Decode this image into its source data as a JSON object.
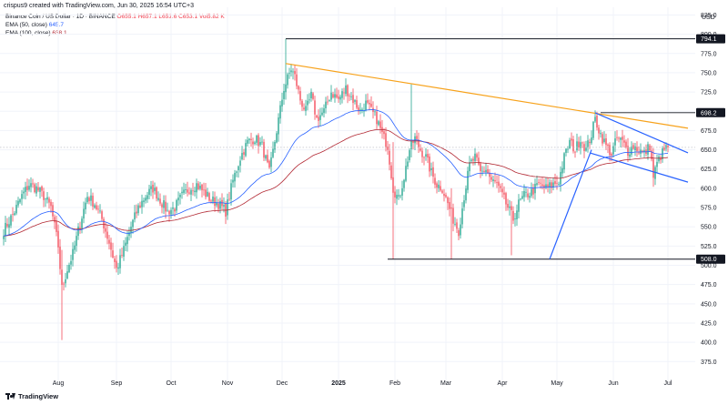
{
  "credit": "crispus9 created with TradingView.com, Jun 30, 2025 16:54 UTC+3",
  "legend": {
    "symbol": "Binance Coin / US Dollar · 1D · BINANCE",
    "ohlc": {
      "o": "O655.1",
      "h": "H657.1",
      "l": "L651.6",
      "c": "C653.1",
      "vol": "Vol5.82 K"
    },
    "ema50_label": "EMA (50, close)",
    "ema50_value": "645.7",
    "ema100_label": "EMA (100, close)",
    "ema100_value": "638.1"
  },
  "currency": "USD",
  "brand": "TradingView",
  "colors": {
    "up": "#089981",
    "down": "#f23645",
    "ema50": "#2962ff",
    "ema100": "#b22833",
    "trend_orange": "#f7a21b",
    "channel_blue": "#2962ff",
    "hline": "#131722",
    "grid": "#f0f3fa"
  },
  "chart_data": {
    "type": "candlestick",
    "title": "Binance Coin / US Dollar · 1D · BINANCE",
    "ylim": [
      360,
      835
    ],
    "yticks": [
      375,
      400,
      425,
      450,
      475,
      500,
      525,
      550,
      575,
      600,
      625,
      650,
      675,
      700,
      725,
      750,
      775,
      800,
      825
    ],
    "xticks": [
      {
        "label": "Aug",
        "day": 30,
        "bold": false
      },
      {
        "label": "Sep",
        "day": 62,
        "bold": false
      },
      {
        "label": "Oct",
        "day": 92,
        "bold": false
      },
      {
        "label": "Nov",
        "day": 123,
        "bold": false
      },
      {
        "label": "Dec",
        "day": 153,
        "bold": false
      },
      {
        "label": "2025",
        "day": 184,
        "bold": true
      },
      {
        "label": "Feb",
        "day": 215,
        "bold": false
      },
      {
        "label": "Mar",
        "day": 243,
        "bold": false
      },
      {
        "label": "Apr",
        "day": 274,
        "bold": false
      },
      {
        "label": "May",
        "day": 304,
        "bold": false
      },
      {
        "label": "Jun",
        "day": 335,
        "bold": false
      },
      {
        "label": "Jul",
        "day": 365,
        "bold": false
      }
    ],
    "price_anchors": [
      [
        0,
        545
      ],
      [
        6,
        570
      ],
      [
        10,
        590
      ],
      [
        14,
        605
      ],
      [
        18,
        600
      ],
      [
        22,
        590
      ],
      [
        26,
        575
      ],
      [
        30,
        525
      ],
      [
        32,
        470
      ],
      [
        35,
        495
      ],
      [
        38,
        515
      ],
      [
        42,
        555
      ],
      [
        46,
        590
      ],
      [
        50,
        580
      ],
      [
        54,
        560
      ],
      [
        58,
        530
      ],
      [
        62,
        495
      ],
      [
        66,
        520
      ],
      [
        70,
        550
      ],
      [
        74,
        575
      ],
      [
        78,
        590
      ],
      [
        82,
        600
      ],
      [
        86,
        585
      ],
      [
        90,
        570
      ],
      [
        94,
        575
      ],
      [
        98,
        590
      ],
      [
        102,
        600
      ],
      [
        106,
        605
      ],
      [
        110,
        595
      ],
      [
        114,
        585
      ],
      [
        118,
        580
      ],
      [
        122,
        570
      ],
      [
        126,
        610
      ],
      [
        130,
        640
      ],
      [
        134,
        660
      ],
      [
        138,
        665
      ],
      [
        142,
        655
      ],
      [
        146,
        620
      ],
      [
        150,
        675
      ],
      [
        154,
        730
      ],
      [
        158,
        755
      ],
      [
        160,
        745
      ],
      [
        163,
        715
      ],
      [
        166,
        700
      ],
      [
        169,
        720
      ],
      [
        172,
        690
      ],
      [
        176,
        700
      ],
      [
        180,
        725
      ],
      [
        184,
        715
      ],
      [
        188,
        730
      ],
      [
        192,
        715
      ],
      [
        196,
        700
      ],
      [
        199,
        710
      ],
      [
        202,
        700
      ],
      [
        205,
        690
      ],
      [
        208,
        670
      ],
      [
        211,
        655
      ],
      [
        214,
        600
      ],
      [
        217,
        585
      ],
      [
        220,
        615
      ],
      [
        223,
        650
      ],
      [
        226,
        665
      ],
      [
        229,
        650
      ],
      [
        232,
        640
      ],
      [
        235,
        620
      ],
      [
        238,
        605
      ],
      [
        241,
        600
      ],
      [
        244,
        580
      ],
      [
        247,
        560
      ],
      [
        250,
        545
      ],
      [
        253,
        590
      ],
      [
        256,
        630
      ],
      [
        259,
        640
      ],
      [
        262,
        620
      ],
      [
        265,
        625
      ],
      [
        268,
        610
      ],
      [
        271,
        605
      ],
      [
        274,
        590
      ],
      [
        277,
        575
      ],
      [
        280,
        560
      ],
      [
        283,
        580
      ],
      [
        286,
        590
      ],
      [
        290,
        595
      ],
      [
        294,
        605
      ],
      [
        298,
        600
      ],
      [
        302,
        605
      ],
      [
        305,
        610
      ],
      [
        308,
        640
      ],
      [
        311,
        660
      ],
      [
        314,
        650
      ],
      [
        317,
        665
      ],
      [
        320,
        650
      ],
      [
        323,
        670
      ],
      [
        325,
        690
      ],
      [
        328,
        670
      ],
      [
        331,
        655
      ],
      [
        334,
        645
      ],
      [
        337,
        665
      ],
      [
        340,
        660
      ],
      [
        343,
        648
      ],
      [
        346,
        655
      ],
      [
        349,
        650
      ],
      [
        352,
        645
      ],
      [
        355,
        655
      ],
      [
        357,
        615
      ],
      [
        359,
        632
      ],
      [
        361,
        642
      ],
      [
        363,
        650
      ],
      [
        365,
        653
      ]
    ],
    "special_wicks": [
      {
        "day": 32,
        "low": 403,
        "high": 520
      },
      {
        "day": 155,
        "high": 794,
        "low": 715
      },
      {
        "day": 214,
        "low": 508,
        "high": 660
      },
      {
        "day": 224,
        "high": 735,
        "low": 640
      },
      {
        "day": 246,
        "low": 508,
        "high": 600
      },
      {
        "day": 279,
        "low": 513,
        "high": 580
      },
      {
        "day": 357,
        "low": 602,
        "high": 652
      }
    ],
    "ema_periods": [
      50,
      100
    ],
    "ema50_last": 645.7,
    "ema100_last": 638.1,
    "horizontal_levels": [
      {
        "value": 794.1,
        "label": "794.1",
        "from_day": 155
      },
      {
        "value": 698.2,
        "label": "698.2",
        "from_day": 328
      },
      {
        "value": 508.0,
        "label": "508.0",
        "from_day": 211
      }
    ],
    "trendlines": [
      {
        "name": "descending-resistance",
        "color": "orange",
        "from": [
          155,
          762
        ],
        "to": [
          376,
          678
        ]
      },
      {
        "name": "wedge-upper",
        "color": "blue",
        "from": [
          325,
          698
        ],
        "to": [
          376,
          646
        ]
      },
      {
        "name": "wedge-lower",
        "color": "blue",
        "from": [
          322,
          646
        ],
        "to": [
          376,
          608
        ]
      },
      {
        "name": "rising-support",
        "color": "blue",
        "from": [
          300,
          508
        ],
        "to": [
          323,
          650
        ]
      }
    ],
    "last_close": 653.1
  }
}
